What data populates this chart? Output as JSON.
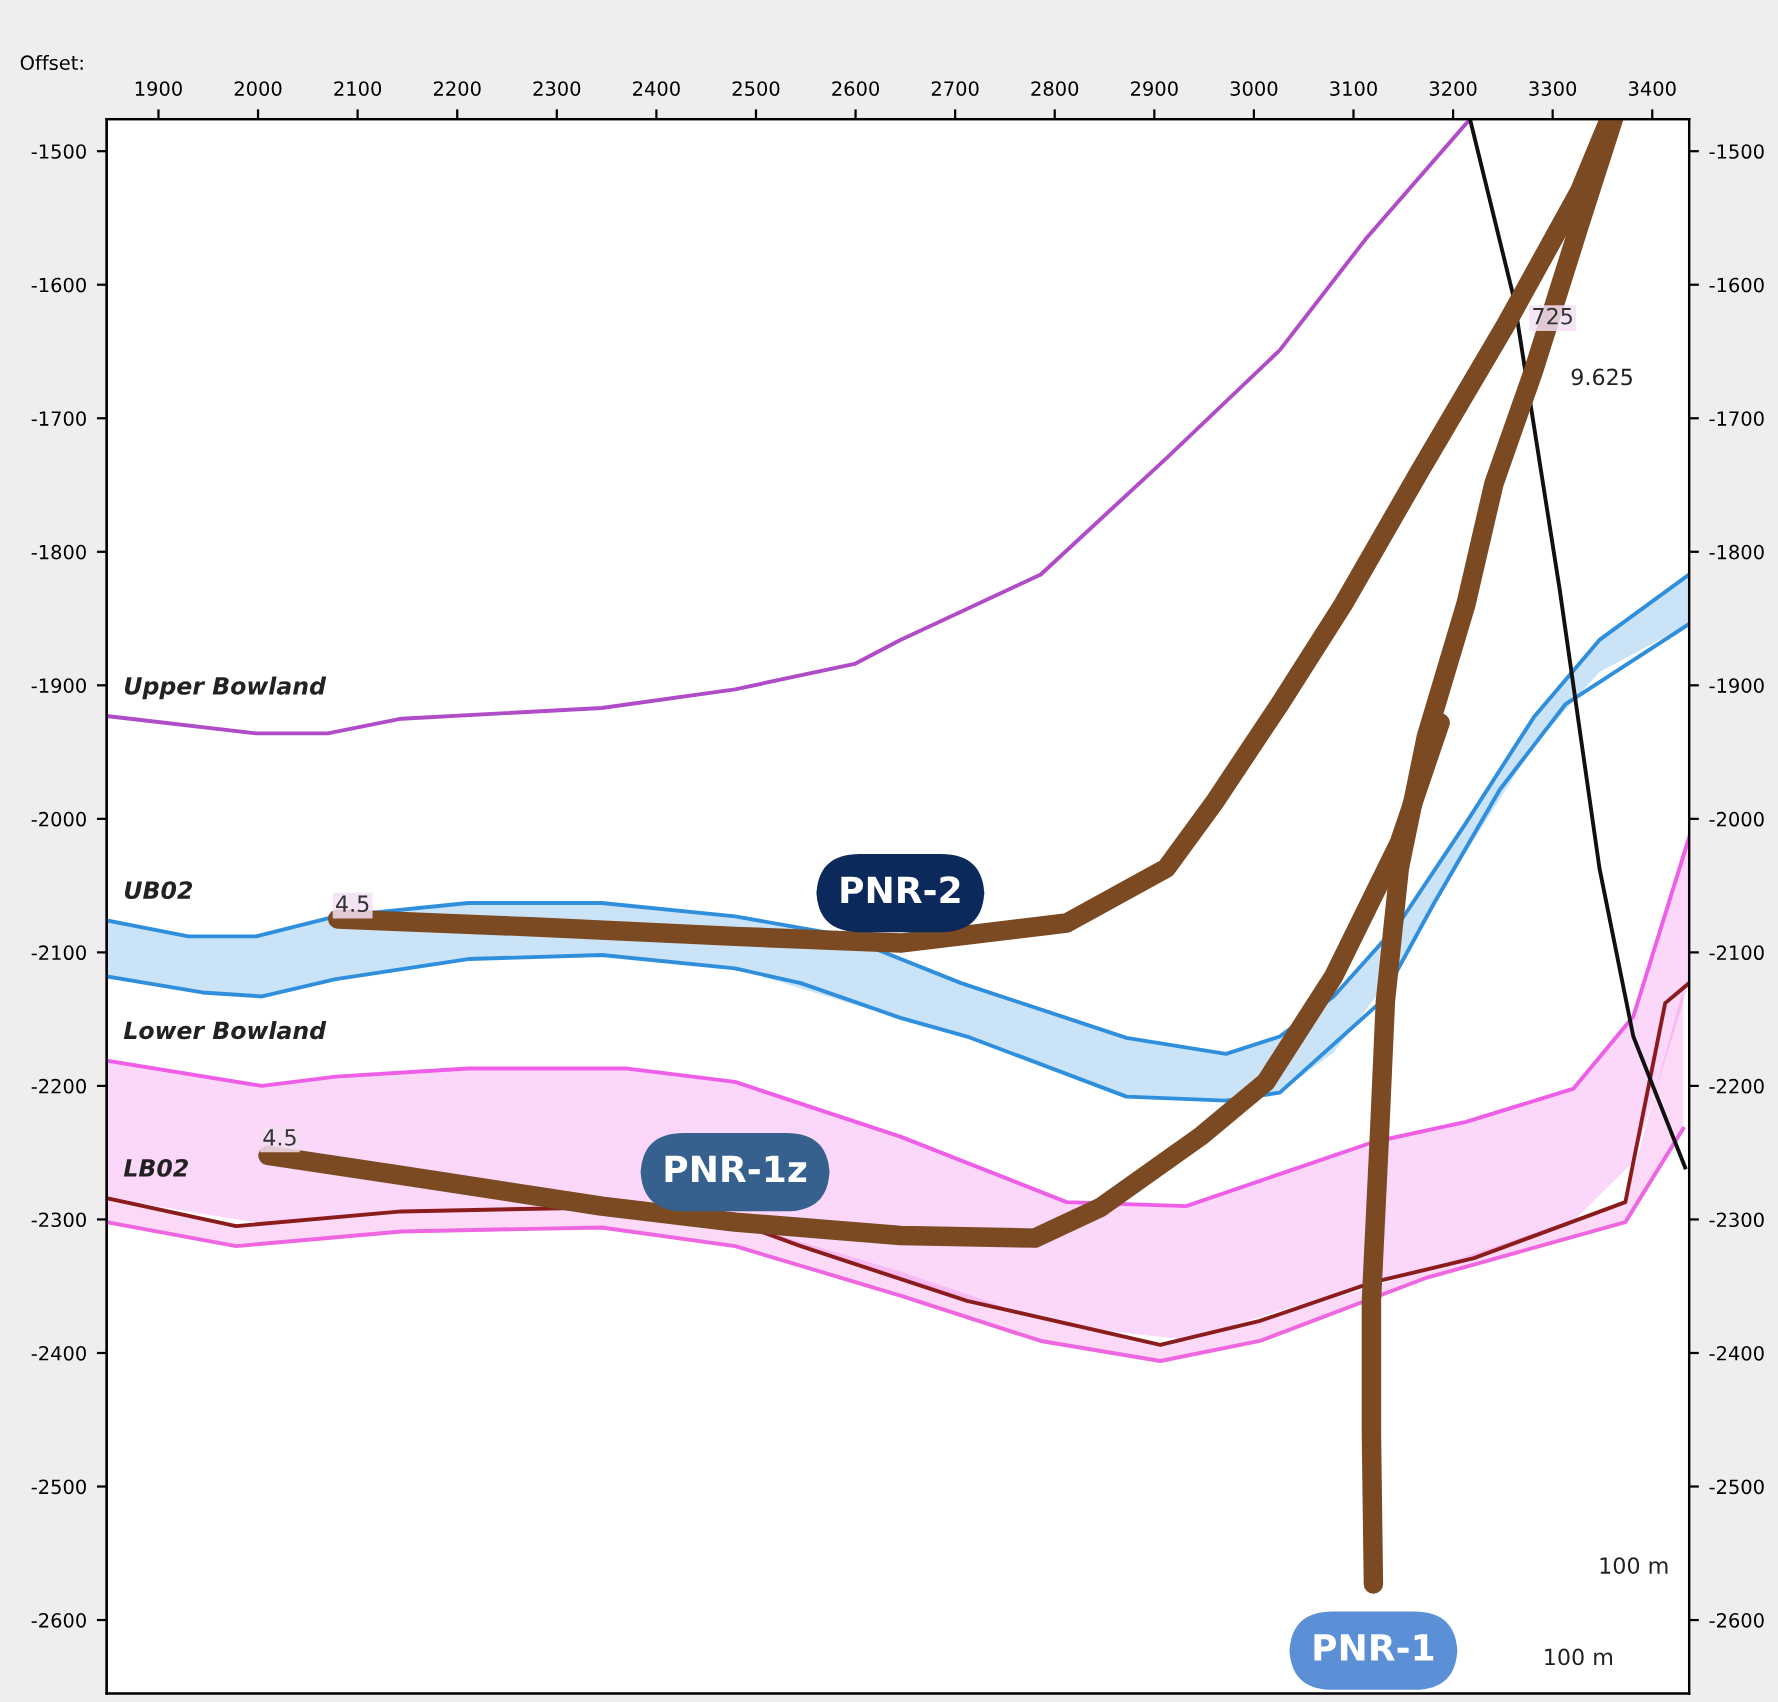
{
  "chart_data": {
    "type": "line",
    "xlabel": "Offset:",
    "xlim": [
      1848,
      3437
    ],
    "ylim": [
      -2655,
      -1476
    ],
    "y2lim": [
      -2655,
      -1476
    ],
    "xticks": [
      1900,
      2000,
      2100,
      2200,
      2300,
      2400,
      2500,
      2600,
      2700,
      2800,
      2900,
      3000,
      3100,
      3200,
      3300,
      3400
    ],
    "yticks": [
      -1500,
      -1600,
      -1700,
      -1800,
      -1900,
      -2000,
      -2100,
      -2200,
      -2300,
      -2400,
      -2500,
      -2600
    ],
    "y2ticks": [
      -1500,
      -1600,
      -1700,
      -1800,
      -1900,
      -2000,
      -2100,
      -2200,
      -2300,
      -2400,
      -2500,
      -2600
    ],
    "grid": false,
    "series": [
      {
        "color": "#ee66e0",
        "x": [
          1848,
          1978,
          2144,
          2345,
          2479,
          2645,
          2786,
          2906,
          3006,
          3172,
          3373,
          3431
        ],
        "values": [
          -2302,
          -2320,
          -2309,
          -2306,
          -2320,
          -2357,
          -2391,
          -2406,
          -2391,
          -2344,
          -2302,
          -2232
        ],
        "lower": [
          -2302,
          -2320,
          -2309,
          -2306,
          -2320,
          -2357,
          -2391,
          -2406,
          -2391,
          -2344,
          -2302,
          -2232
        ],
        "upper": [
          -2284,
          -2305,
          -2294,
          -2291,
          -2302,
          -2339,
          -2375,
          -2394,
          -2376,
          -2338,
          -2287,
          -2127
        ]
      },
      {
        "name": "LB02",
        "color": "#8b1c1c",
        "x": [
          1848,
          1978,
          2144,
          2345,
          2479,
          2545,
          2712,
          2906,
          3006,
          3120,
          3221,
          3373,
          3413,
          3437
        ],
        "values": [
          -2284,
          -2305,
          -2294,
          -2291,
          -2302,
          -2320,
          -2361,
          -2394,
          -2376,
          -2347,
          -2329,
          -2287,
          -2138,
          -2123
        ]
      },
      {
        "name": "Lower Bowland",
        "color": "#ee5ee6",
        "x": [
          1848,
          2004,
          2078,
          2211,
          2371,
          2479,
          2645,
          2812,
          2932,
          3120,
          3213,
          3321,
          3381,
          3437
        ],
        "values": [
          -2181,
          -2200,
          -2193,
          -2187,
          -2187,
          -2197,
          -2238,
          -2287,
          -2290,
          -2242,
          -2227,
          -2202,
          -2148,
          -2014
        ],
        "lower": [
          -2284,
          -2303,
          -2298,
          -2293,
          -2293,
          -2302,
          -2345,
          -2380,
          -2390,
          -2347,
          -2330,
          -2301,
          -2257,
          -2123
        ],
        "upper": [
          -2181,
          -2200,
          -2193,
          -2187,
          -2187,
          -2197,
          -2238,
          -2287,
          -2290,
          -2242,
          -2227,
          -2202,
          -2148,
          -2014
        ]
      },
      {
        "name": "UB02",
        "color": "#2f8fdc",
        "x": [
          1848,
          1930,
          1998,
          2078,
          2211,
          2345,
          2479,
          2585,
          2706,
          2872,
          2972,
          3026,
          3080,
          3146,
          3213,
          3281,
          3347,
          3437
        ],
        "values": [
          -2076,
          -2088,
          -2088,
          -2073,
          -2063,
          -2063,
          -2073,
          -2087,
          -2123,
          -2164,
          -2176,
          -2163,
          -2133,
          -2078,
          -2003,
          -1924,
          -1866,
          -1817
        ],
        "lower": [
          -2118,
          -2128,
          -2133,
          -2120,
          -2105,
          -2102,
          -2112,
          -2136,
          -2162,
          -2208,
          -2211,
          -2205,
          -2175,
          -2110,
          -2025,
          -1945,
          -1890,
          -1854
        ],
        "upper": [
          -2076,
          -2088,
          -2088,
          -2073,
          -2063,
          -2063,
          -2073,
          -2087,
          -2123,
          -2164,
          -2176,
          -2163,
          -2133,
          -2078,
          -2003,
          -1924,
          -1866,
          -1817
        ]
      },
      {
        "color": "#2f8fdc",
        "x": [
          1848,
          1944,
          2004,
          2078,
          2211,
          2345,
          2479,
          2545,
          2645,
          2712,
          2872,
          2972,
          3026,
          3126,
          3181,
          3247,
          3313,
          3437
        ],
        "values": [
          -2118,
          -2130,
          -2133,
          -2120,
          -2105,
          -2102,
          -2112,
          -2123,
          -2149,
          -2163,
          -2208,
          -2211,
          -2205,
          -2138,
          -2063,
          -1978,
          -1914,
          -1854
        ]
      },
      {
        "name": "Upper Bowland",
        "color": "#b04cc8",
        "x": [
          1848,
          1998,
          2070,
          2144,
          2345,
          2479,
          2599,
          2645,
          2786,
          2912,
          3026,
          3112,
          3217
        ],
        "values": [
          -1923,
          -1936,
          -1936,
          -1925,
          -1917,
          -1903,
          -1884,
          -1866,
          -1817,
          -1730,
          -1649,
          -1566,
          -1476
        ]
      },
      {
        "color": "#111111",
        "x": [
          3217,
          3261,
          3307,
          3347,
          3381,
          3433
        ],
        "values": [
          -1476,
          -1610,
          -1828,
          -2037,
          -2163,
          -2261
        ]
      },
      {
        "name": "PNR-2",
        "line_style": "solid",
        "color": "#7b4a22",
        "x": [
          2080,
          2279,
          2479,
          2645,
          2812,
          2912,
          2960,
          3026,
          3090,
          3167,
          3253,
          3327,
          3357
        ],
        "values": [
          -2075,
          -2081,
          -2088,
          -2093,
          -2078,
          -2037,
          -1988,
          -1914,
          -1839,
          -1739,
          -1630,
          -1530,
          -1476
        ]
      },
      {
        "name": "PNR-1z",
        "line_style": "solid",
        "color": "#7b4a22",
        "x": [
          2010,
          2144,
          2345,
          2479,
          2645,
          2780,
          2846,
          2946,
          3012,
          3080,
          3146,
          3187
        ],
        "values": [
          -2252,
          -2267,
          -2290,
          -2302,
          -2312,
          -2314,
          -2291,
          -2238,
          -2197,
          -2118,
          -2018,
          -1928
        ]
      },
      {
        "name": "PNR-1",
        "line_style": "solid",
        "color": "#7b4a22",
        "x": [
          3361,
          3327,
          3281,
          3241,
          3213,
          3173,
          3146,
          3132,
          3126,
          3118,
          3118,
          3120
        ],
        "values": [
          -1476,
          -1555,
          -1664,
          -1749,
          -1839,
          -1939,
          -2037,
          -2137,
          -2238,
          -2361,
          -2461,
          -2573
        ]
      }
    ],
    "annotations": [
      {
        "text": "4.5",
        "x": 2095,
        "y": -2065
      },
      {
        "text": "4.5",
        "x": 2022,
        "y": -2240
      },
      {
        "text": "725",
        "x": 3300,
        "y": -1625
      },
      "9.625",
      "100 m",
      "100 m"
    ]
  }
}
